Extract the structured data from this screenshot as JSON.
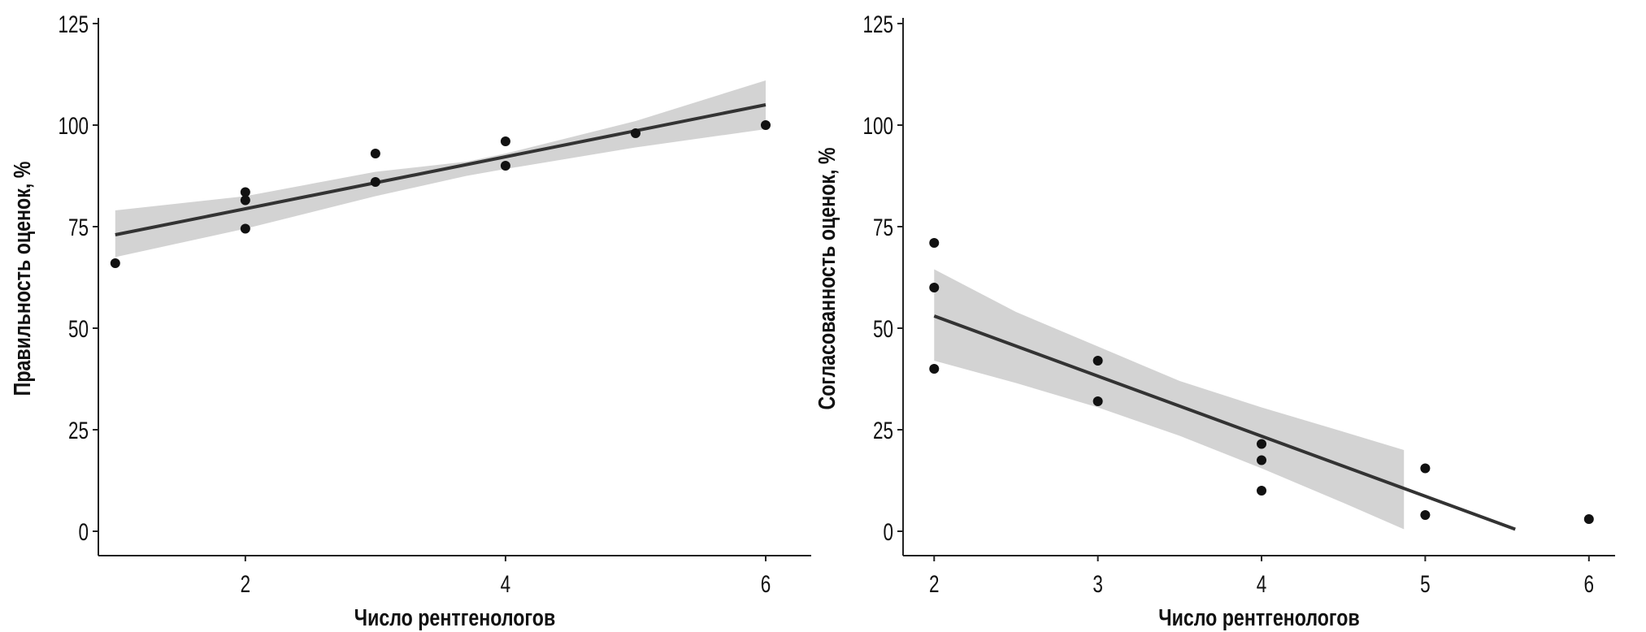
{
  "chart_data": [
    {
      "type": "scatter",
      "title": "",
      "xlabel": "Число рентгенологов",
      "ylabel": "Правильность оценок, %",
      "xlim": [
        0.87,
        6.35
      ],
      "ylim": [
        -6,
        125
      ],
      "xticks": [
        2,
        4,
        6
      ],
      "yticks": [
        0,
        25,
        50,
        75,
        100,
        125
      ],
      "grid": false,
      "points": [
        [
          1,
          66
        ],
        [
          2,
          83.5
        ],
        [
          2,
          81.5
        ],
        [
          2,
          74.5
        ],
        [
          3,
          93
        ],
        [
          3,
          86
        ],
        [
          4,
          96
        ],
        [
          4,
          90
        ],
        [
          5,
          98
        ],
        [
          6,
          100
        ]
      ],
      "regression": {
        "x": [
          1,
          6
        ],
        "y": [
          73,
          105
        ]
      },
      "ci_band": {
        "x": [
          1,
          2,
          3,
          3.7,
          4,
          5,
          6
        ],
        "lower": [
          67.5,
          74.5,
          82.5,
          87.5,
          89.2,
          94.5,
          99
        ],
        "upper": [
          79,
          82.5,
          88.5,
          91,
          93,
          101,
          111
        ]
      }
    },
    {
      "type": "scatter",
      "title": "",
      "xlabel": "Число рентгенологов",
      "ylabel": "Согласованность оценок, %",
      "xlim": [
        1.81,
        6.16
      ],
      "ylim": [
        -6,
        125
      ],
      "xticks": [
        2,
        3,
        4,
        5,
        6
      ],
      "yticks": [
        0,
        25,
        50,
        75,
        100,
        125
      ],
      "grid": false,
      "points": [
        [
          2,
          71
        ],
        [
          2,
          60
        ],
        [
          2,
          40
        ],
        [
          3,
          42
        ],
        [
          3,
          32
        ],
        [
          4,
          21.5
        ],
        [
          4,
          17.5
        ],
        [
          4,
          10
        ],
        [
          5,
          15.5
        ],
        [
          5,
          4
        ],
        [
          6,
          3
        ]
      ],
      "regression": {
        "x": [
          2,
          5.55
        ],
        "y": [
          53,
          0.5
        ]
      },
      "ci_band": {
        "x": [
          2,
          2.5,
          3,
          3.5,
          4,
          4.5,
          4.87
        ],
        "lower": [
          42,
          36.5,
          30.5,
          23.5,
          15.5,
          7,
          0.5
        ],
        "upper": [
          64.5,
          54,
          45.5,
          37,
          30.5,
          24.5,
          20
        ]
      }
    }
  ]
}
